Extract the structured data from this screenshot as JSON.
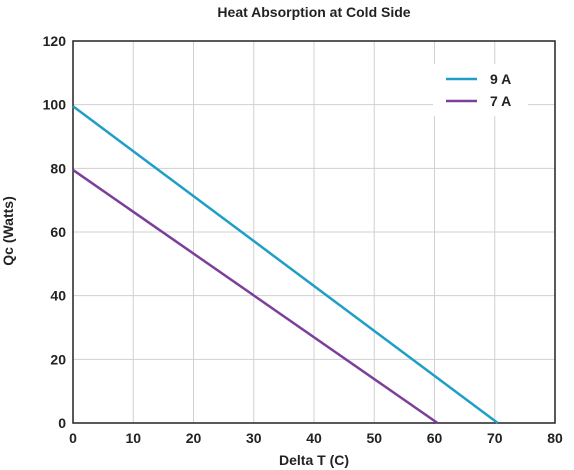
{
  "chart_data": {
    "type": "line",
    "title": "Heat Absorption at Cold Side",
    "xlabel": "Delta T (C)",
    "ylabel": "Qc (Watts)",
    "xlim": [
      0,
      80
    ],
    "ylim": [
      0,
      120
    ],
    "xticks": [
      0,
      10,
      20,
      30,
      40,
      50,
      60,
      70,
      80
    ],
    "yticks": [
      0,
      20,
      40,
      60,
      80,
      100,
      120
    ],
    "grid": true,
    "legend_position": "top-right",
    "series": [
      {
        "name": "9 A",
        "color": "#1f9fc7",
        "x": [
          0,
          70.5
        ],
        "y": [
          99.5,
          0
        ]
      },
      {
        "name": "7 A",
        "color": "#7b3f9a",
        "x": [
          0,
          60.5
        ],
        "y": [
          79.5,
          0
        ]
      }
    ]
  }
}
